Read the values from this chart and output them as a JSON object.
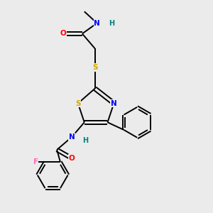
{
  "bg_color": "#ebebeb",
  "bond_color": "#000000",
  "atom_colors": {
    "N": "#0000ff",
    "O": "#ff0000",
    "S": "#ccaa00",
    "F": "#ff69b4",
    "H": "#008080",
    "C": "#000000"
  }
}
